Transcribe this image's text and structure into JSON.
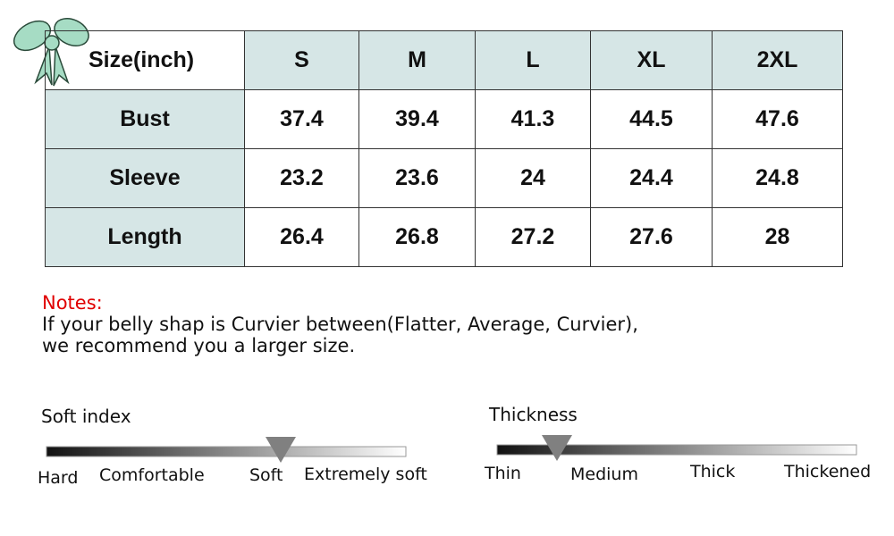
{
  "table": {
    "header": [
      "Size(inch)",
      "S",
      "M",
      "L",
      "XL",
      "2XL"
    ],
    "rows": [
      [
        "Bust",
        "37.4",
        "39.4",
        "41.3",
        "44.5",
        "47.6"
      ],
      [
        "Sleeve",
        "23.2",
        "23.6",
        "24",
        "24.4",
        "24.8"
      ],
      [
        "Length",
        "26.4",
        "26.8",
        "27.2",
        "27.6",
        "28"
      ]
    ]
  },
  "notes": {
    "title": "Notes:",
    "lines": [
      "If your belly shap is Curvier between(Flatter, Average, Curvier),",
      "we recommend you a larger size."
    ]
  },
  "scales": [
    {
      "title": "Soft index",
      "labels": [
        "Hard",
        "Comfortable",
        "Soft",
        "Extremely soft"
      ]
    },
    {
      "title": "Thickness",
      "labels": [
        "Thin",
        "Medium",
        "Thick",
        "Thickened"
      ]
    }
  ]
}
